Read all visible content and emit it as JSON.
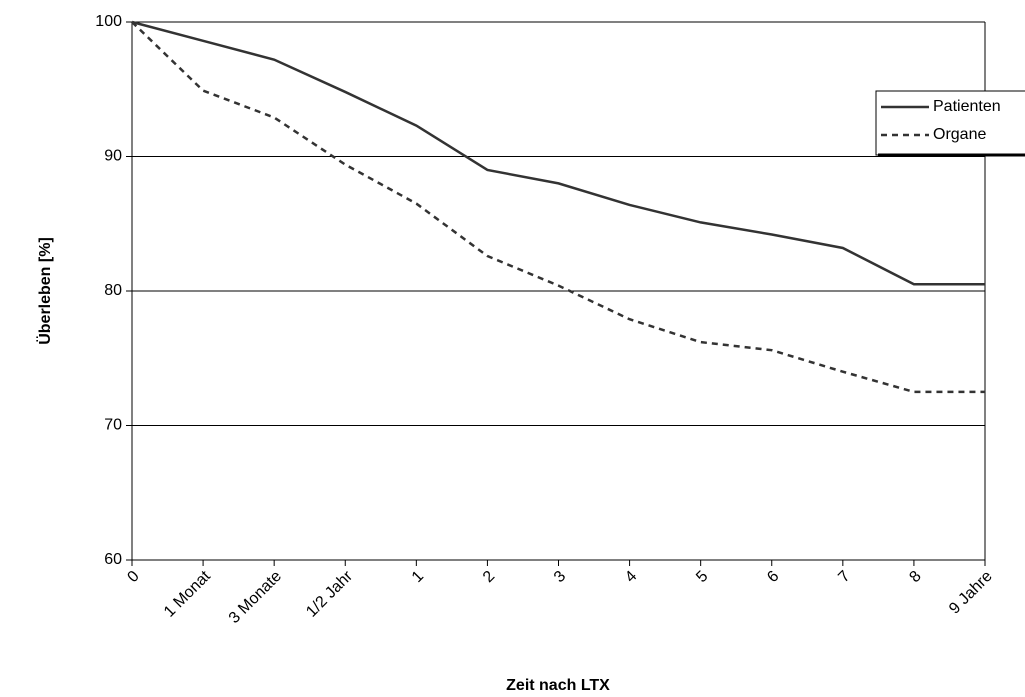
{
  "chart_data": {
    "type": "line",
    "x_label": "Zeit nach LTX",
    "y_label": "Überleben [%]",
    "categories": [
      "0",
      "1 Monat",
      "3 Monate",
      "1/2 Jahr",
      "1",
      "2",
      "3",
      "4",
      "5",
      "6",
      "7",
      "8",
      "9 Jahre"
    ],
    "series": [
      {
        "name": "Patienten",
        "color": "#333333",
        "style": "solid",
        "values": [
          100,
          98.6,
          97.2,
          94.8,
          92.3,
          89.0,
          88.0,
          86.4,
          85.1,
          84.2,
          83.2,
          80.5,
          80.5
        ]
      },
      {
        "name": "Organe",
        "color": "#333333",
        "style": "dashed",
        "values": [
          100,
          94.9,
          92.9,
          89.4,
          86.5,
          82.6,
          80.4,
          77.9,
          76.2,
          75.6,
          74.0,
          72.5,
          72.5
        ]
      }
    ],
    "ylim": [
      60,
      100
    ],
    "yticks": [
      60,
      70,
      80,
      90,
      100
    ],
    "grid": true,
    "legend": "upper right"
  }
}
